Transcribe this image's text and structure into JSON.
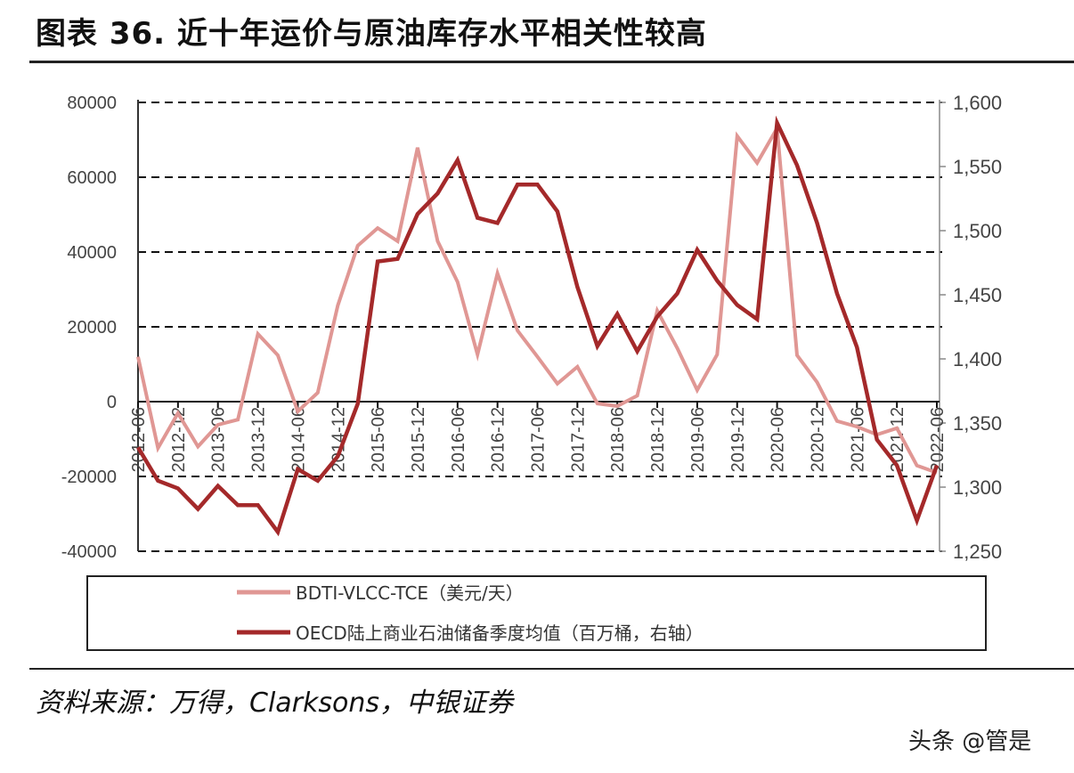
{
  "title": "图表 36. 近十年运价与原油库存水平相关性较高",
  "source": "资料来源：万得，Clarksons，中银证券",
  "watermark": "头条 @管是",
  "colors": {
    "bdti": "#E09794",
    "oecd": "#A4292A"
  },
  "chart_data": {
    "type": "line",
    "x": [
      "2012-06",
      "2012-09",
      "2012-12",
      "2013-03",
      "2013-06",
      "2013-09",
      "2013-12",
      "2014-03",
      "2014-06",
      "2014-09",
      "2014-12",
      "2015-03",
      "2015-06",
      "2015-09",
      "2015-12",
      "2016-03",
      "2016-06",
      "2016-09",
      "2016-12",
      "2017-03",
      "2017-06",
      "2017-09",
      "2017-12",
      "2018-03",
      "2018-06",
      "2018-09",
      "2018-12",
      "2019-03",
      "2019-06",
      "2019-09",
      "2019-12",
      "2020-03",
      "2020-06",
      "2020-09",
      "2020-12",
      "2021-03",
      "2021-06",
      "2021-09",
      "2021-12",
      "2022-03",
      "2022-06"
    ],
    "x_tick_labels": [
      "2012-06",
      "2012-12",
      "2013-06",
      "2013-12",
      "2014-06",
      "2014-12",
      "2015-06",
      "2015-12",
      "2016-06",
      "2016-12",
      "2017-06",
      "2017-12",
      "2018-06",
      "2018-12",
      "2019-06",
      "2019-12",
      "2020-06",
      "2020-12",
      "2021-06",
      "2021-12",
      "2022-06"
    ],
    "y_left": {
      "ylim": [
        -40000,
        80000
      ],
      "ticks": [
        "80000",
        "60000",
        "40000",
        "20000",
        "0",
        "-20000",
        "-40000"
      ]
    },
    "y_right": {
      "ylim": [
        1250,
        1600
      ],
      "ticks": [
        "1,600",
        "1,550",
        "1,500",
        "1,450",
        "1,400",
        "1,350",
        "1,300",
        "1,250"
      ]
    },
    "grid": "horizontal dashed",
    "legend_position": "bottom",
    "series": [
      {
        "name": "BDTI-VLCC-TCE（美元/天）",
        "axis": "left",
        "values": [
          12000,
          -12400,
          -3100,
          -12000,
          -6200,
          -4800,
          18100,
          12400,
          -2600,
          2400,
          25700,
          41700,
          46400,
          42900,
          67900,
          42900,
          32000,
          12600,
          34300,
          19000,
          12000,
          4800,
          9300,
          -500,
          -1200,
          1600,
          24300,
          14300,
          3100,
          12600,
          71000,
          63800,
          73100,
          12400,
          5200,
          -5200,
          -6700,
          -8800,
          -7100,
          -17100,
          -19000
        ]
      },
      {
        "name": "OECD陆上商业石油储备季度均值（百万桶，右轴）",
        "axis": "right",
        "values": [
          1331,
          1305,
          1299,
          1283,
          1301,
          1286,
          1286,
          1265,
          1314,
          1305,
          1324,
          1365,
          1476,
          1478,
          1513,
          1529,
          1555,
          1510,
          1506,
          1536,
          1536,
          1515,
          1456,
          1410,
          1435,
          1406,
          1433,
          1451,
          1485,
          1461,
          1442,
          1431,
          1584,
          1551,
          1506,
          1451,
          1409,
          1337,
          1317,
          1274,
          1317
        ]
      }
    ]
  }
}
